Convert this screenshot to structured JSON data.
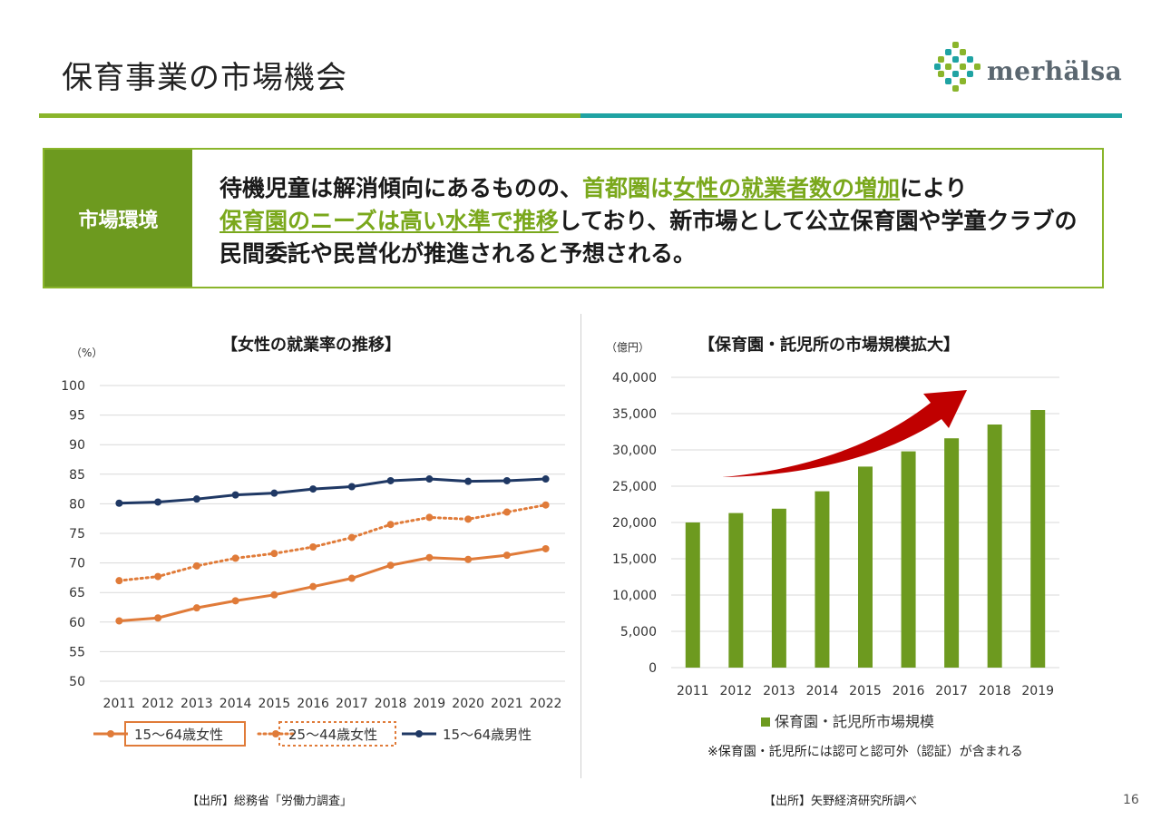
{
  "page": {
    "title": "保育事業の市場機会",
    "page_number": "16"
  },
  "logo": {
    "text": "merhälsa"
  },
  "market_env": {
    "label": "市場環境",
    "text_parts": [
      "待機児童は解消傾向にあるものの、",
      "首都圏は",
      "女性の就業者数の増加",
      "により",
      "保育園のニーズは高い水準で推移",
      "しており、新市場として公立保育園や学童クラブの民間委託や民営化が推進されると予想される。"
    ]
  },
  "left_chart": {
    "title": "【女性の就業率の推移】",
    "unit": "（%）",
    "source": "【出所】総務省「労働力調査」"
  },
  "right_chart": {
    "title": "【保育園・託児所の市場規模拡大】",
    "unit": "（億円）",
    "source": "【出所】矢野経済研究所調べ",
    "note": "※保育園・託児所には認可と認可外（認証）が含まれる"
  },
  "chart_data": [
    {
      "type": "line",
      "title": "【女性の就業率の推移】",
      "ylabel": "（%）",
      "x": [
        2011,
        2012,
        2013,
        2014,
        2015,
        2016,
        2017,
        2018,
        2019,
        2020,
        2021,
        2022
      ],
      "ylim": [
        50,
        100
      ],
      "yticks": [
        50,
        55,
        60,
        65,
        70,
        75,
        80,
        85,
        90,
        95,
        100
      ],
      "grid": true,
      "legend": "bottom",
      "series": [
        {
          "name": "15〜64歳女性",
          "color": "#e07b39",
          "style": "solid",
          "values": [
            60.2,
            60.7,
            62.4,
            63.6,
            64.6,
            66.0,
            67.4,
            69.6,
            70.9,
            70.6,
            71.3,
            72.4
          ]
        },
        {
          "name": "25〜44歳女性",
          "color": "#e07b39",
          "style": "dotted",
          "values": [
            67.0,
            67.7,
            69.5,
            70.8,
            71.6,
            72.7,
            74.3,
            76.5,
            77.7,
            77.4,
            78.6,
            79.8
          ]
        },
        {
          "name": "15〜64歳男性",
          "color": "#1f3864",
          "style": "solid",
          "values": [
            80.1,
            80.3,
            80.8,
            81.5,
            81.8,
            82.5,
            82.9,
            83.9,
            84.2,
            83.8,
            83.9,
            84.2
          ]
        }
      ]
    },
    {
      "type": "bar",
      "title": "【保育園・託児所の市場規模拡大】",
      "ylabel": "（億円）",
      "categories": [
        "2011",
        "2012",
        "2013",
        "2014",
        "2015",
        "2016",
        "2017",
        "2018",
        "2019"
      ],
      "ylim": [
        0,
        40000
      ],
      "yticks": [
        "0",
        "5,000",
        "10,000",
        "15,000",
        "20,000",
        "25,000",
        "30,000",
        "35,000",
        "40,000"
      ],
      "grid": true,
      "legend": "bottom",
      "series": [
        {
          "name": "保育園・託児所市場規模",
          "color": "#6d9a1f",
          "values": [
            20000,
            21300,
            21900,
            24300,
            27700,
            29800,
            31600,
            33500,
            35500
          ]
        }
      ]
    }
  ]
}
